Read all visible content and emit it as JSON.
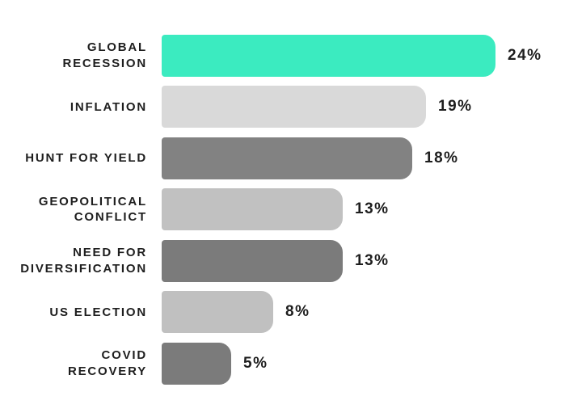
{
  "chart_data": {
    "type": "bar",
    "orientation": "horizontal",
    "title": "",
    "unit": "%",
    "value_axis_range": [
      0,
      24
    ],
    "grid": false,
    "legend": false,
    "background_color": "#ffffff",
    "text_color": "#1e1e1e",
    "series": [
      {
        "label": "GLOBAL RECESSION",
        "label_lines": [
          "GLOBAL",
          "RECESSION"
        ],
        "value": 24,
        "value_label": "24%",
        "color": "#3bebc0"
      },
      {
        "label": "INFLATION",
        "label_lines": [
          "INFLATION"
        ],
        "value": 19,
        "value_label": "19%",
        "color": "#d9d9d9"
      },
      {
        "label": "HUNT FOR YIELD",
        "label_lines": [
          "HUNT FOR YIELD"
        ],
        "value": 18,
        "value_label": "18%",
        "color": "#828282"
      },
      {
        "label": "GEOPOLITICAL CONFLICT",
        "label_lines": [
          "GEOPOLITICAL",
          "CONFLICT"
        ],
        "value": 13,
        "value_label": "13%",
        "color": "#c1c1c1"
      },
      {
        "label": "NEED FOR DIVERSIFICATION",
        "label_lines": [
          "NEED FOR",
          "DIVERSIFICATION"
        ],
        "value": 13,
        "value_label": "13%",
        "color": "#7b7b7b"
      },
      {
        "label": "US ELECTION",
        "label_lines": [
          "US ELECTION"
        ],
        "value": 8,
        "value_label": "8%",
        "color": "#c0c0c0"
      },
      {
        "label": "COVID RECOVERY",
        "label_lines": [
          "COVID",
          "RECOVERY"
        ],
        "value": 5,
        "value_label": "5%",
        "color": "#7b7b7b"
      }
    ]
  }
}
